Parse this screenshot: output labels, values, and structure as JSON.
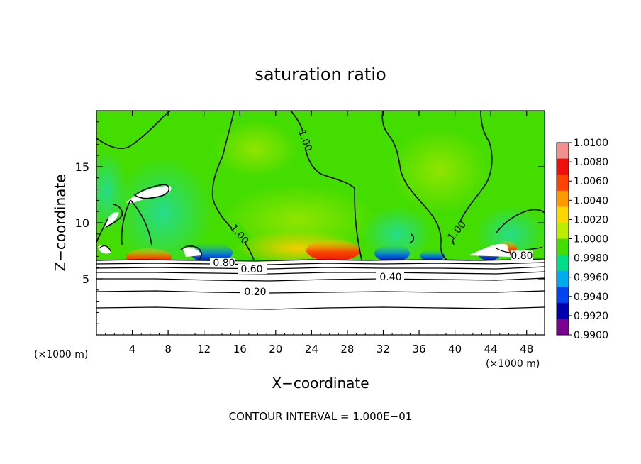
{
  "chart_data": {
    "type": "heatmap",
    "title": "saturation ratio",
    "xlabel": "X−coordinate",
    "ylabel": "Z−coordinate",
    "x_unit_label": "(×1000 m)",
    "x_unit_label_right": "(×1000 m)",
    "footer": "CONTOUR INTERVAL = 1.000E−01",
    "xlim": [
      0,
      50
    ],
    "ylim": [
      0,
      20
    ],
    "x_ticks": [
      "4",
      "8",
      "12",
      "16",
      "20",
      "24",
      "28",
      "32",
      "36",
      "40",
      "44",
      "48"
    ],
    "x_tick_values": [
      4,
      8,
      12,
      16,
      20,
      24,
      28,
      32,
      36,
      40,
      44,
      48
    ],
    "y_ticks": [
      "5",
      "10",
      "15"
    ],
    "y_tick_values": [
      5,
      10,
      15
    ],
    "colorbar": {
      "min": 0.99,
      "max": 1.01,
      "labels": [
        "1.0100",
        "1.0080",
        "1.0060",
        "1.0040",
        "1.0020",
        "1.0000",
        "0.9980",
        "0.9960",
        "0.9940",
        "0.9920",
        "0.9900"
      ],
      "colors": [
        "#f09090",
        "#ee1010",
        "#ff4400",
        "#ff9900",
        "#ffd800",
        "#bbee00",
        "#44dd00",
        "#00dd88",
        "#00aaee",
        "#0044ee",
        "#0000aa",
        "#7a0090"
      ]
    },
    "contour_labels": [
      "1.00",
      "1.00",
      "1.00",
      "0.80",
      "0.60",
      "0.40",
      "0.20",
      "0.80"
    ],
    "fields": {
      "background_color": "#44dd00",
      "below_cloud_color": "#ffffff",
      "saturated_region_value_approx": 1.0,
      "cloud_base_z_approx": 6.6
    }
  }
}
